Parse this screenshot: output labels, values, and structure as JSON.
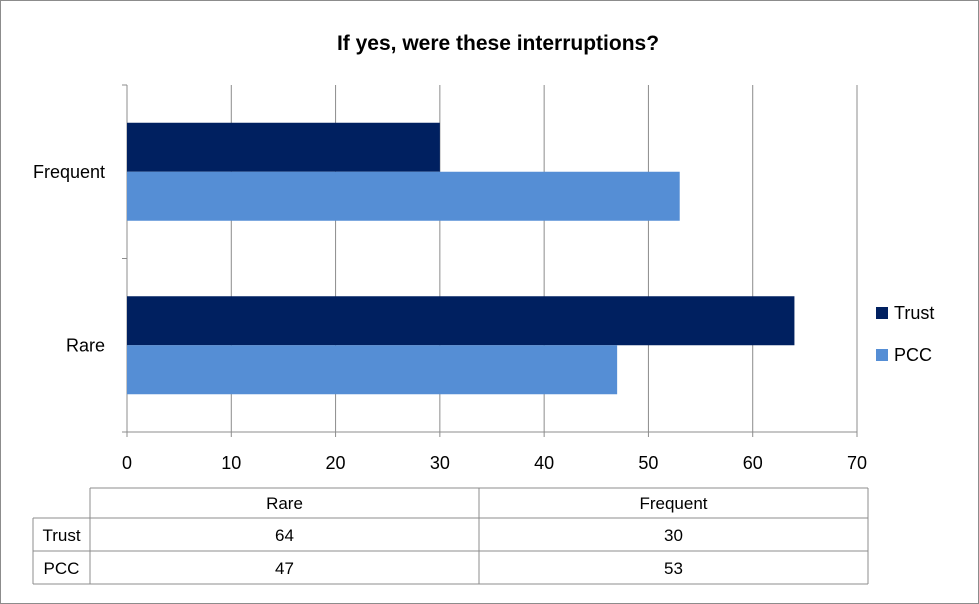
{
  "chart_data": {
    "type": "bar",
    "orientation": "horizontal",
    "title": "If yes, were these interruptions?",
    "categories": [
      "Frequent",
      "Rare"
    ],
    "series": [
      {
        "name": "Trust",
        "color": "#002060",
        "values": [
          30,
          64
        ]
      },
      {
        "name": "PCC",
        "color": "#558ED5",
        "values": [
          53,
          47
        ]
      }
    ],
    "xlim": [
      0,
      70
    ],
    "x_ticks": [
      "0",
      "10",
      "20",
      "30",
      "40",
      "50",
      "60",
      "70"
    ],
    "grid": true,
    "legend_position": "right",
    "data_table": {
      "columns": [
        "Rare",
        "Frequent"
      ],
      "rows": [
        {
          "label": "Trust",
          "values": [
            "64",
            "30"
          ]
        },
        {
          "label": "PCC",
          "values": [
            "47",
            "53"
          ]
        }
      ]
    }
  }
}
